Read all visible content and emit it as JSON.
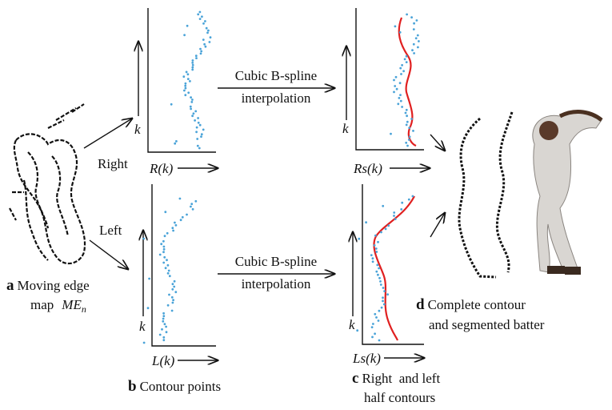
{
  "panel_a": {
    "letter": "a",
    "line1": "Moving edge",
    "line2": "map",
    "symbol": "ME",
    "subscript": "n"
  },
  "branches": {
    "right": "Right",
    "left": "Left"
  },
  "plots": [
    {
      "y_label": "k",
      "x_label": "R(k)"
    },
    {
      "y_label": "k",
      "x_label": "L(k)"
    },
    {
      "y_label": "k",
      "x_label": "Rs(k)"
    },
    {
      "y_label": "k",
      "x_label": "Ls(k)"
    }
  ],
  "interpolation": [
    {
      "line1": "Cubic B-spline",
      "line2": "interpolation"
    },
    {
      "line1": "Cubic B-spline",
      "line2": "interpolation"
    }
  ],
  "panel_b": {
    "letter": "b",
    "text": "Contour points"
  },
  "panel_c": {
    "letter": "c",
    "line1": "Right  and left",
    "line2": "half contours"
  },
  "panel_d": {
    "letter": "d",
    "line1": "Complete contour",
    "line2": "and segmented batter"
  }
}
